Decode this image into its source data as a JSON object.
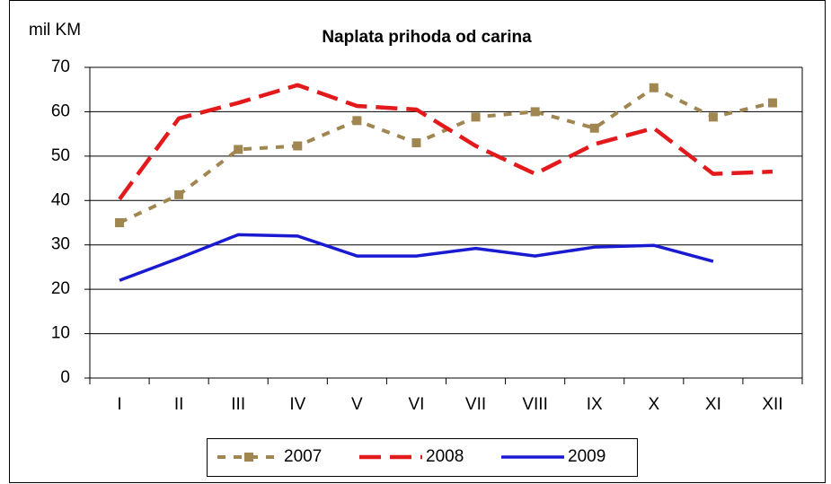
{
  "chart_data": {
    "type": "line",
    "title": "Naplata prihoda od carina",
    "y_label": "mil KM",
    "categories": [
      "I",
      "II",
      "III",
      "IV",
      "V",
      "VI",
      "VII",
      "VIII",
      "IX",
      "X",
      "XI",
      "XII"
    ],
    "series": [
      {
        "name": "2007",
        "color": "#a08650",
        "values": [
          35,
          41.3,
          51.5,
          52.3,
          58,
          53,
          58.8,
          60,
          56.3,
          65.4,
          58.8,
          62
        ]
      },
      {
        "name": "2008",
        "color": "#e31a1c",
        "values": [
          40.3,
          58.5,
          62,
          66,
          61.3,
          60.5,
          52.3,
          46,
          52.7,
          56.3,
          46,
          46.5
        ]
      },
      {
        "name": "2009",
        "color": "#1a1ad0",
        "values": [
          22,
          27,
          32.3,
          32,
          27.5,
          27.5,
          29.2,
          27.5,
          29.5,
          29.9,
          26.3,
          null
        ]
      }
    ],
    "ylim": [
      0,
      70
    ],
    "yticks": [
      0,
      10,
      20,
      30,
      40,
      50,
      60,
      70
    ],
    "grid": true,
    "legend": "bottom"
  }
}
